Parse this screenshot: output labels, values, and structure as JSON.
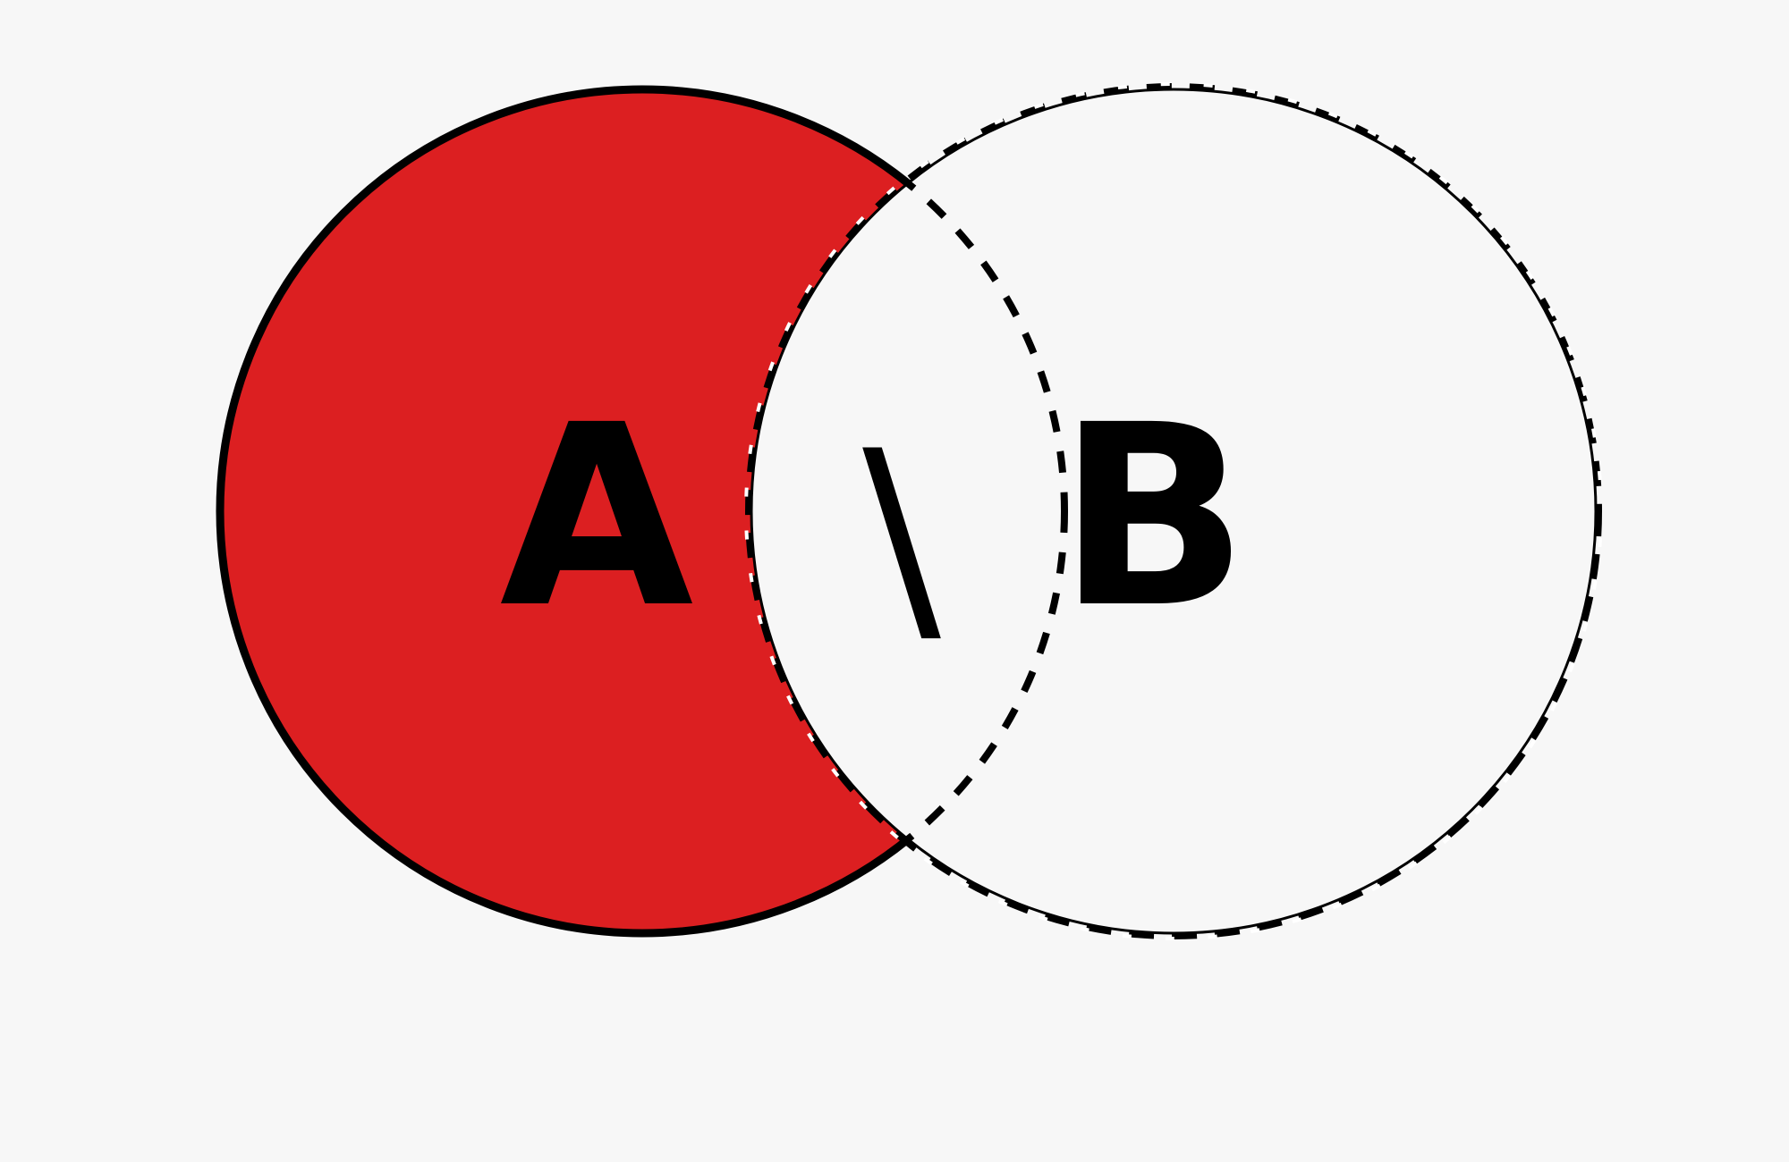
{
  "diagram": {
    "type": "venn-set-difference",
    "set_a_label": "A",
    "operator_label": "\\",
    "set_b_label": "B",
    "colors": {
      "background": "#f7f7f7",
      "highlight_fill": "#dc1f21",
      "stroke": "#000000",
      "dash_highlight": "#ffffff"
    }
  }
}
